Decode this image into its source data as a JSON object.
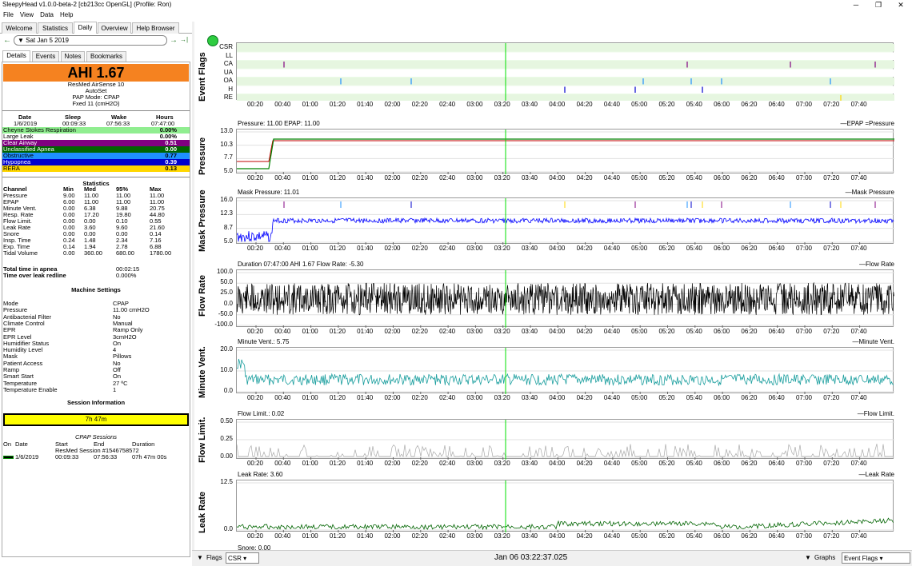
{
  "window": {
    "title": "SleepyHead v1.0.0-beta-2 [cb213cc OpenGL] (Profile: Ron)",
    "minimize": "─",
    "maximize": "❐",
    "close": "✕"
  },
  "menu": [
    "File",
    "View",
    "Data",
    "Help"
  ],
  "tabs": [
    "Welcome",
    "Statistics",
    "Daily",
    "Overview",
    "Help Browser"
  ],
  "date": {
    "back": "←",
    "forward": "→",
    "jump": "→|",
    "value": "Sat Jan 5 2019"
  },
  "subtabs": [
    "Details",
    "Events",
    "Notes",
    "Bookmarks"
  ],
  "summary": {
    "ahi": "AHI 1.67",
    "device": "ResMed AirSense 10",
    "device_mode": "AutoSet",
    "pap_mode": "PAP Mode: CPAP",
    "pressure": "Fxed 11 (cmH2O)"
  },
  "times": {
    "headers": [
      "Date",
      "Sleep",
      "Wake",
      "Hours"
    ],
    "values": [
      "1/6/2019",
      "00:09:33",
      "07:56:33",
      "07:47:00"
    ]
  },
  "events": [
    {
      "name": "Cheyne Stokes Respiration",
      "value": "0.00%",
      "bg": "#90ee90",
      "fg": "#000000"
    },
    {
      "name": "Large Leak",
      "value": "0.00%",
      "bg": "#ffffff",
      "fg": "#000000"
    },
    {
      "name": "Clear Airway",
      "value": "0.51",
      "bg": "#800080",
      "fg": "#ffffff"
    },
    {
      "name": "Unclassified Apnea",
      "value": "0.00",
      "bg": "#006400",
      "fg": "#ffffff"
    },
    {
      "name": "Obstructive",
      "value": "0.77",
      "bg": "#1e90ff",
      "fg": "#000000"
    },
    {
      "name": "Hypopnea",
      "value": "0.39",
      "bg": "#0000cd",
      "fg": "#ffffff"
    },
    {
      "name": "RERA",
      "value": "0.13",
      "bg": "#ffd700",
      "fg": "#000000"
    }
  ],
  "statistics": {
    "title": "Statistics",
    "headers": [
      "Channel",
      "Min",
      "Med",
      "95%",
      "Max"
    ],
    "rows": [
      [
        "Pressure",
        "9.00",
        "11.00",
        "11.00",
        "11.00"
      ],
      [
        "EPAP",
        "6.00",
        "11.00",
        "11.00",
        "11.00"
      ],
      [
        "Minute Vent.",
        "0.00",
        "6.38",
        "9.88",
        "20.75"
      ],
      [
        "Resp. Rate",
        "0.00",
        "17.20",
        "19.80",
        "44.80"
      ],
      [
        "Flow Limit.",
        "0.00",
        "0.00",
        "0.10",
        "0.55"
      ],
      [
        "Leak Rate",
        "0.00",
        "3.60",
        "9.60",
        "21.60"
      ],
      [
        "Snore",
        "0.00",
        "0.00",
        "0.00",
        "0.14"
      ],
      [
        "Insp. Time",
        "0.24",
        "1.48",
        "2.34",
        "7.16"
      ],
      [
        "Exp. Time",
        "0.14",
        "1.94",
        "2.78",
        "6.88"
      ],
      [
        "Tidal Volume",
        "0.00",
        "360.00",
        "680.00",
        "1780.00"
      ]
    ]
  },
  "apnea": {
    "label1": "Total time in apnea",
    "value1": "00:02:15",
    "label2": "Time over leak redline",
    "value2": "0.000%"
  },
  "machine": {
    "title": "Machine Settings",
    "rows": [
      [
        "Mode",
        "CPAP"
      ],
      [
        "Pressure",
        "11.00 cmH2O"
      ],
      [
        "Antibacterial Filter",
        "No"
      ],
      [
        "Climate Control",
        "Manual"
      ],
      [
        "EPR",
        "Ramp Only"
      ],
      [
        "EPR Level",
        "3cmH2O"
      ],
      [
        "Humidifier Status",
        "On"
      ],
      [
        "Humidity Level",
        "4"
      ],
      [
        "Mask",
        "Pillows"
      ],
      [
        "Patient Access",
        "No"
      ],
      [
        "Ramp",
        "Off"
      ],
      [
        "Smart Start",
        "On"
      ],
      [
        "Temperature",
        "27 ºC"
      ],
      [
        "Temperature Enable",
        "1"
      ]
    ]
  },
  "session": {
    "title": "Session Information",
    "duration": "7h 47m",
    "cpap_title": "CPAP Sessions",
    "headers": [
      "On",
      "Date",
      "Start",
      "End",
      "Duration"
    ],
    "session_name": "ResMed Session #1546758572",
    "row": [
      "1/6/2019",
      "00:09:33",
      "07:56:33",
      "07h 47m 00s"
    ]
  },
  "graphs": {
    "x_ticks": [
      "00:20",
      "00:40",
      "01:00",
      "01:20",
      "01:40",
      "02:00",
      "02:20",
      "02:40",
      "03:00",
      "03:20",
      "03:40",
      "04:00",
      "04:20",
      "04:40",
      "05:00",
      "05:20",
      "05:40",
      "06:00",
      "06:20",
      "06:40",
      "07:00",
      "07:20",
      "07:40"
    ],
    "flags": {
      "title": "Event Flags",
      "rows": [
        "CSR",
        "LL",
        "CA",
        "UA",
        "OA",
        "H",
        "RE"
      ]
    },
    "pressure": {
      "title": "Pressure",
      "caption": "Pressure: 11.00 EPAP: 11.00",
      "legend": "EPAP =Pressure",
      "yticks": [
        "13.0",
        "10.3",
        "7.7",
        "5.0"
      ]
    },
    "mask": {
      "title": "Mask Pressure",
      "caption": "Mask Pressure: 11.01",
      "legend": "Mask Pressure",
      "yticks": [
        "16.0",
        "12.3",
        "8.7",
        "5.0"
      ]
    },
    "flow": {
      "title": "Flow Rate",
      "caption": "Duration 07:47:00 AHI 1.67 Flow Rate: -5.30",
      "legend": "Flow Rate",
      "yticks": [
        "100.0",
        "50.0",
        "25.0",
        "0.0",
        "-50.0",
        "-100.0"
      ]
    },
    "minvent": {
      "title": "Minute Vent.",
      "caption": "Minute Vent.: 5.75",
      "legend": "Minute Vent.",
      "yticks": [
        "20.0",
        "10.0",
        "0.0"
      ]
    },
    "flowlim": {
      "title": "Flow Limit.",
      "caption": "Flow Limit.: 0.02",
      "legend": "Flow Limit.",
      "yticks": [
        "0.50",
        "0.25",
        "0.00"
      ]
    },
    "leak": {
      "title": "Leak Rate",
      "caption": "Leak Rate: 3.60",
      "legend": "Leak Rate",
      "yticks": [
        "12.5",
        "0.0"
      ]
    },
    "snore": {
      "caption": "Snore: 0.00"
    }
  },
  "bottom": {
    "flags": "Flags",
    "csr": "CSR",
    "time": "Jan 06 03:22:37.025",
    "graphs": "Graphs",
    "event_flags": "Event Flags"
  },
  "colors": {
    "ahi": "#f58220",
    "session": "#ffff00",
    "pressure": "#008000",
    "epap": "#c00000",
    "mask": "#0000ff",
    "flow": "#000000",
    "minvent": "#1a9e9e",
    "flowlim": "#aaaaaa",
    "leak": "#006400",
    "cursor": "#00e000",
    "flagbg": "#ecfbe8"
  }
}
